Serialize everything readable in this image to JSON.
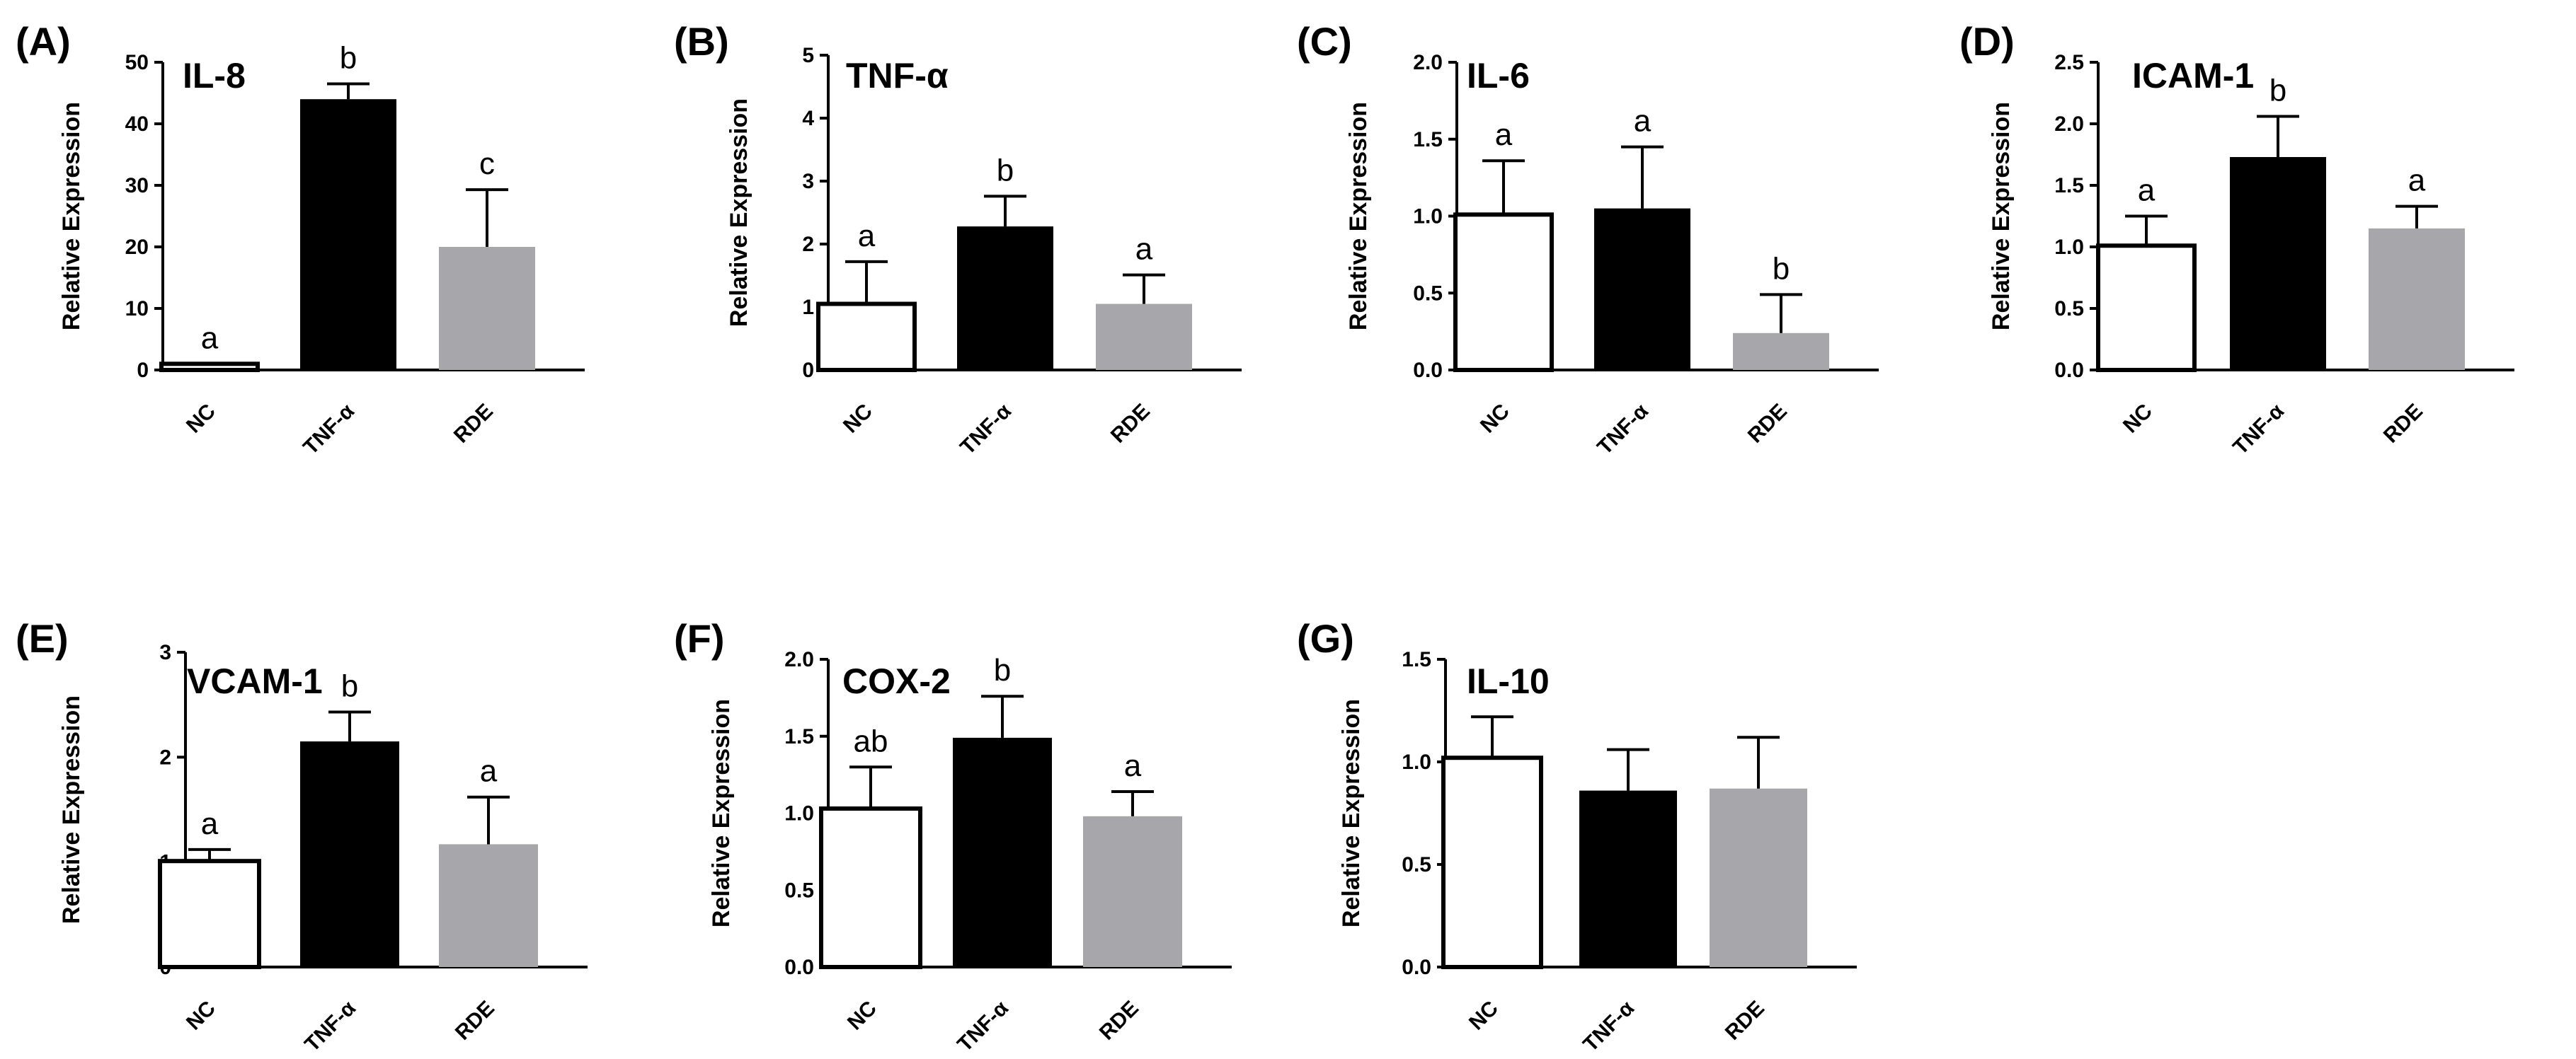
{
  "figure": {
    "colors": {
      "NC": "#ffffff",
      "TNF-α": "#000000",
      "RDE": "#a7a7ab",
      "axis": "#000000"
    },
    "categories": [
      "NC",
      "TNF-α",
      "RDE"
    ]
  },
  "chart_data": [
    {
      "type": "bar",
      "panel": "(A)",
      "title": "IL-8",
      "ylabel": "Relative Expression",
      "xlabel": "",
      "ylim": [
        0,
        50
      ],
      "yticks": [
        "0",
        "10",
        "20",
        "30",
        "40",
        "50"
      ],
      "categories": [
        "NC",
        "TNF-α",
        "RDE"
      ],
      "values": [
        1.0,
        44.0,
        20.0
      ],
      "errors": [
        0,
        2.5,
        9.3
      ],
      "labels": [
        "a",
        "b",
        "c"
      ]
    },
    {
      "type": "bar",
      "panel": "(B)",
      "title": "TNF-α",
      "ylabel": "Relative Expression",
      "xlabel": "",
      "ylim": [
        0,
        5
      ],
      "yticks": [
        "0",
        "1",
        "2",
        "3",
        "4",
        "5"
      ],
      "categories": [
        "NC",
        "TNF-α",
        "RDE"
      ],
      "values": [
        1.05,
        2.28,
        1.05
      ],
      "errors": [
        0.67,
        0.48,
        0.46
      ],
      "labels": [
        "a",
        "b",
        "a"
      ]
    },
    {
      "type": "bar",
      "panel": "(C)",
      "title": "IL-6",
      "ylabel": "Relative Expression",
      "xlabel": "",
      "ylim": [
        0,
        2.0
      ],
      "yticks": [
        "0.0",
        "0.5",
        "1.0",
        "1.5",
        "2.0"
      ],
      "categories": [
        "NC",
        "TNF-α",
        "RDE"
      ],
      "values": [
        1.01,
        1.05,
        0.24
      ],
      "errors": [
        0.35,
        0.4,
        0.25
      ],
      "labels": [
        "a",
        "a",
        "b"
      ]
    },
    {
      "type": "bar",
      "panel": "(D)",
      "title": "ICAM-1",
      "ylabel": "Relative Expression",
      "xlabel": "",
      "ylim": [
        0,
        2.5
      ],
      "yticks": [
        "0.0",
        "0.5",
        "1.0",
        "1.5",
        "2.0",
        "2.5"
      ],
      "categories": [
        "NC",
        "TNF-α",
        "RDE"
      ],
      "values": [
        1.01,
        1.73,
        1.15
      ],
      "errors": [
        0.24,
        0.33,
        0.18
      ],
      "labels": [
        "a",
        "b",
        "a"
      ]
    },
    {
      "type": "bar",
      "panel": "(E)",
      "title": "VCAM-1",
      "ylabel": "Relative Expression",
      "xlabel": "",
      "ylim": [
        0,
        3
      ],
      "yticks": [
        "0",
        "1",
        "2",
        "3"
      ],
      "categories": [
        "NC",
        "TNF-α",
        "RDE"
      ],
      "values": [
        1.01,
        2.15,
        1.17
      ],
      "errors": [
        0.11,
        0.28,
        0.45
      ],
      "labels": [
        "a",
        "b",
        "a"
      ]
    },
    {
      "type": "bar",
      "panel": "(F)",
      "title": "COX-2",
      "ylabel": "Relative Expression",
      "xlabel": "",
      "ylim": [
        0,
        2.0
      ],
      "yticks": [
        "0.0",
        "0.5",
        "1.0",
        "1.5",
        "2.0"
      ],
      "categories": [
        "NC",
        "TNF-α",
        "RDE"
      ],
      "values": [
        1.03,
        1.49,
        0.98
      ],
      "errors": [
        0.27,
        0.27,
        0.16
      ],
      "labels": [
        "ab",
        "b",
        "a"
      ]
    },
    {
      "type": "bar",
      "panel": "(G)",
      "title": "IL-10",
      "ylabel": "Relative Expression",
      "xlabel": "",
      "ylim": [
        0,
        1.5
      ],
      "yticks": [
        "0.0",
        "0.5",
        "1.0",
        "1.5"
      ],
      "categories": [
        "NC",
        "TNF-α",
        "RDE"
      ],
      "values": [
        1.02,
        0.86,
        0.87
      ],
      "errors": [
        0.2,
        0.2,
        0.25
      ],
      "labels": [
        "",
        "",
        ""
      ]
    }
  ]
}
